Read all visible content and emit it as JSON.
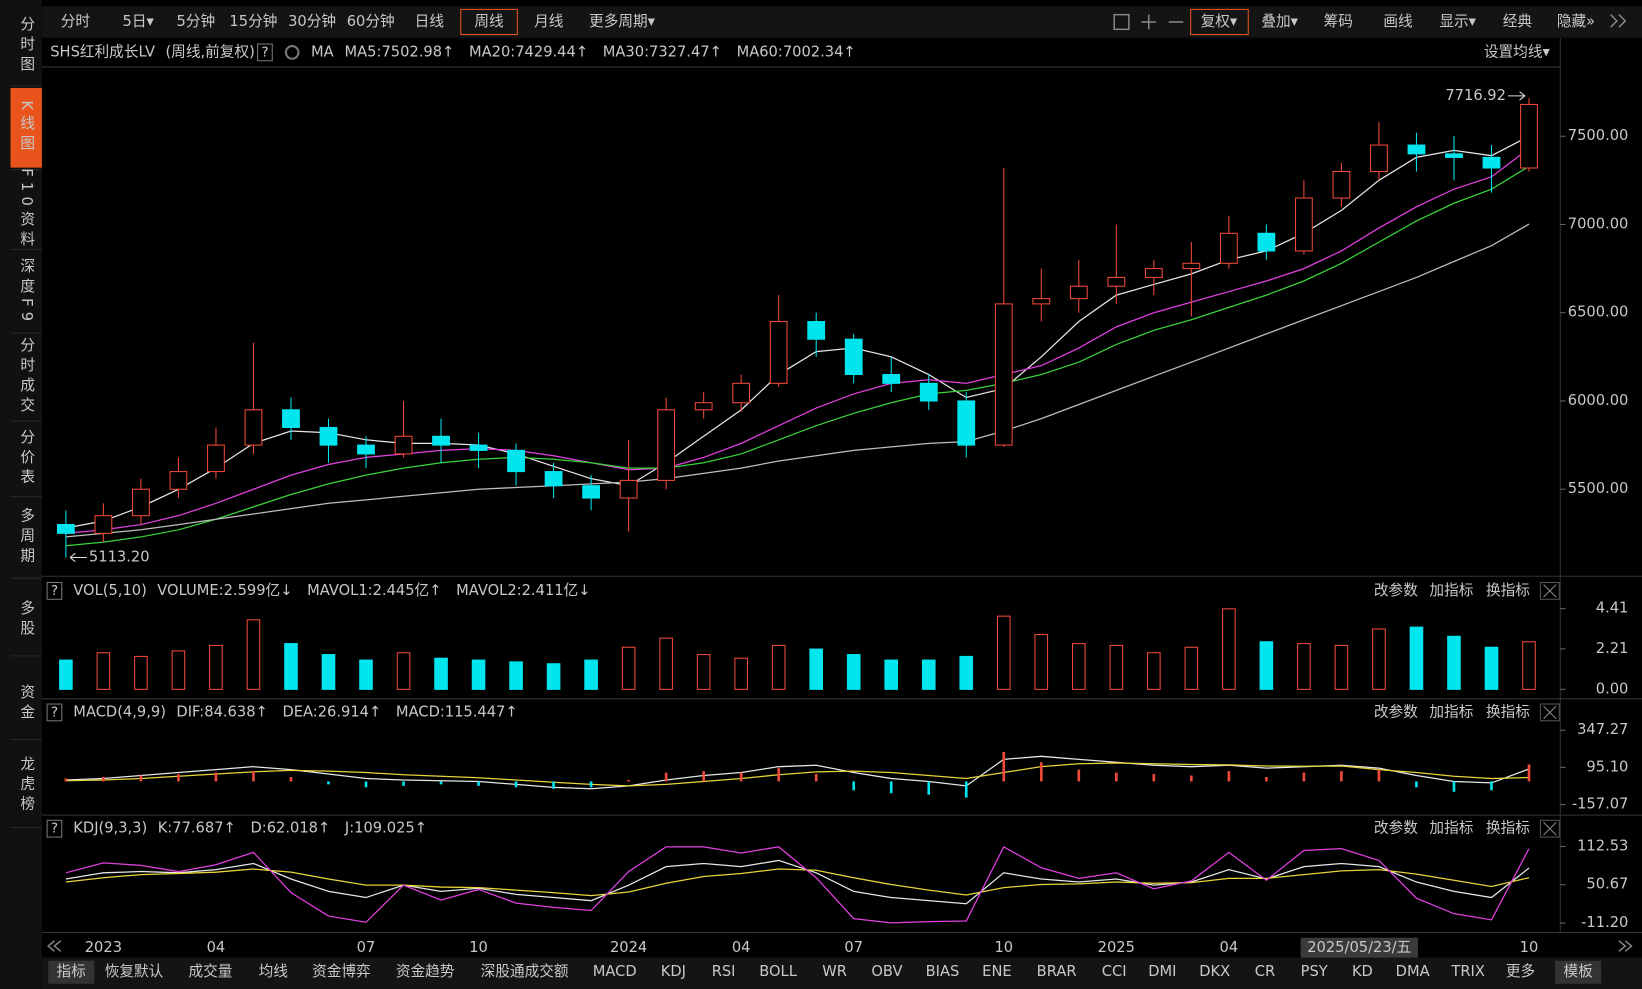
{
  "toolbar": {
    "periods": [
      "分时",
      "5日▾",
      "5分钟",
      "15分钟",
      "30分钟",
      "60分钟",
      "日线",
      "周线",
      "月线",
      "更多周期▾"
    ],
    "tools": [
      "复权▾",
      "叠加▾",
      "筹码",
      "画线",
      "显示▾",
      "经典",
      "隐藏»"
    ]
  },
  "sidebar": [
    "分时图",
    "K线图",
    "F10资料",
    "深度F9",
    "分时成交",
    "分价表",
    "多周期",
    "多股",
    "资金",
    "龙虎榜"
  ],
  "bottom_tabs": [
    "指标",
    "恢复默认",
    "成交量",
    "均线",
    "资金博弈",
    "资金趋势",
    "深股通成交额",
    "MACD",
    "KDJ",
    "RSI",
    "BOLL",
    "WR",
    "OBV",
    "BIAS",
    "ENE",
    "BRAR",
    "CCI",
    "DMI",
    "DKX",
    "CR",
    "PSY",
    "KD",
    "DMA",
    "TRIX",
    "更多",
    "模板"
  ],
  "panel_buttons": [
    "改参数",
    "加指标",
    "换指标"
  ],
  "help_mark": "?",
  "chart_data": {
    "type": "candlestick",
    "title": "SHS红利成长LV",
    "subtitle": "(周线,前复权)",
    "ma_label": "MA",
    "ma_settings": "设置均线▾",
    "up_color": "#f04a3a",
    "down_color": "#00e5ee",
    "categories": [
      null,
      "2023",
      null,
      null,
      "04",
      null,
      null,
      null,
      "07",
      null,
      null,
      "10",
      null,
      null,
      null,
      "2024",
      null,
      null,
      "04",
      null,
      null,
      "07",
      null,
      null,
      null,
      "10",
      null,
      null,
      "2025",
      null,
      null,
      "04",
      null,
      null,
      null,
      null,
      null,
      null,
      null,
      "10"
    ],
    "candles": [
      [
        5300,
        5380,
        5113.2,
        5250
      ],
      [
        5250,
        5420,
        5200,
        5350
      ],
      [
        5350,
        5560,
        5300,
        5500
      ],
      [
        5500,
        5680,
        5450,
        5600
      ],
      [
        5600,
        5850,
        5560,
        5750
      ],
      [
        5750,
        6330,
        5700,
        5950
      ],
      [
        5950,
        6020,
        5780,
        5850
      ],
      [
        5850,
        5900,
        5650,
        5750
      ],
      [
        5750,
        5800,
        5620,
        5700
      ],
      [
        5700,
        6000,
        5680,
        5800
      ],
      [
        5800,
        5900,
        5650,
        5750
      ],
      [
        5750,
        5820,
        5620,
        5720
      ],
      [
        5720,
        5760,
        5520,
        5600
      ],
      [
        5600,
        5650,
        5450,
        5520
      ],
      [
        5520,
        5580,
        5380,
        5450
      ],
      [
        5450,
        5780,
        5260,
        5550
      ],
      [
        5550,
        6020,
        5500,
        5950
      ],
      [
        5950,
        6050,
        5900,
        5990
      ],
      [
        5990,
        6150,
        5940,
        6100
      ],
      [
        6100,
        6600,
        6080,
        6450
      ],
      [
        6450,
        6500,
        6250,
        6350
      ],
      [
        6350,
        6380,
        6100,
        6150
      ],
      [
        6150,
        6250,
        6050,
        6100
      ],
      [
        6100,
        6150,
        5950,
        6000
      ],
      [
        6000,
        6050,
        5680,
        5750
      ],
      [
        5750,
        7320,
        5740,
        6550
      ],
      [
        6550,
        6750,
        6450,
        6580
      ],
      [
        6580,
        6800,
        6500,
        6650
      ],
      [
        6650,
        7000,
        6550,
        6700
      ],
      [
        6700,
        6800,
        6600,
        6750
      ],
      [
        6750,
        6900,
        6480,
        6780
      ],
      [
        6780,
        7050,
        6750,
        6950
      ],
      [
        6950,
        7000,
        6800,
        6850
      ],
      [
        6850,
        7250,
        6830,
        7150
      ],
      [
        7150,
        7350,
        7100,
        7300
      ],
      [
        7300,
        7580,
        7250,
        7450
      ],
      [
        7450,
        7520,
        7300,
        7400
      ],
      [
        7400,
        7500,
        7250,
        7380
      ],
      [
        7380,
        7450,
        7180,
        7320
      ],
      [
        7320,
        7716.92,
        7300,
        7680
      ]
    ],
    "ylim": [
      5019,
      7886
    ],
    "yticks": [
      {
        "value": 5500,
        "label": "5500.00"
      },
      {
        "value": 6000,
        "label": "6000.00"
      },
      {
        "value": 6500,
        "label": "6500.00"
      },
      {
        "value": 7000,
        "label": "7000.00"
      },
      {
        "value": 7500,
        "label": "7500.00"
      }
    ],
    "series": [
      {
        "name": "MA5:7502.98↑",
        "color": "#e6e6e6",
        "values": [
          5280,
          5320,
          5400,
          5500,
          5620,
          5760,
          5830,
          5820,
          5780,
          5760,
          5760,
          5750,
          5700,
          5630,
          5560,
          5520,
          5650,
          5800,
          5950,
          6150,
          6280,
          6300,
          6250,
          6150,
          6020,
          6070,
          6250,
          6450,
          6600,
          6660,
          6720,
          6800,
          6850,
          6950,
          7080,
          7250,
          7380,
          7420,
          7390,
          7500
        ]
      },
      {
        "name": "MA20:7429.44↑",
        "color": "#e040e0",
        "values": [
          5250,
          5270,
          5300,
          5350,
          5420,
          5500,
          5580,
          5640,
          5680,
          5700,
          5720,
          5730,
          5720,
          5690,
          5650,
          5610,
          5620,
          5680,
          5760,
          5860,
          5960,
          6040,
          6100,
          6120,
          6100,
          6150,
          6200,
          6300,
          6420,
          6500,
          6560,
          6620,
          6680,
          6750,
          6850,
          6980,
          7100,
          7200,
          7270,
          7430
        ]
      },
      {
        "name": "MA30:7327.47↑",
        "color": "#3ad33a",
        "values": [
          5180,
          5200,
          5230,
          5270,
          5330,
          5400,
          5470,
          5530,
          5580,
          5620,
          5650,
          5670,
          5680,
          5670,
          5650,
          5620,
          5620,
          5650,
          5700,
          5780,
          5860,
          5930,
          5990,
          6040,
          6060,
          6100,
          6150,
          6220,
          6320,
          6400,
          6460,
          6530,
          6600,
          6680,
          6780,
          6900,
          7020,
          7120,
          7200,
          7330
        ]
      },
      {
        "name": "MA60:7002.34↑",
        "color": "#bdbdbd",
        "values": [
          5230,
          5250,
          5270,
          5300,
          5330,
          5360,
          5390,
          5420,
          5440,
          5460,
          5480,
          5500,
          5510,
          5520,
          5530,
          5540,
          5560,
          5590,
          5620,
          5660,
          5690,
          5720,
          5740,
          5760,
          5770,
          5830,
          5900,
          5980,
          6060,
          6140,
          6220,
          6300,
          6380,
          6460,
          6540,
          6620,
          6700,
          6790,
          6880,
          7002.34
        ]
      }
    ],
    "max_label": "7716.92",
    "min_label": "5113.20",
    "cursor_date": "2025/05/23/五",
    "volume": {
      "title": "VOL(5,10)",
      "ylim": [
        0,
        4.75
      ],
      "yticks": [
        {
          "value": 0,
          "label": "0.00"
        },
        2.21,
        4.41
      ],
      "series": [
        {
          "name": "VOLUME:2.599亿↓",
          "color": "#e6e6e6",
          "values": [
            1.6,
            2.0,
            1.8,
            2.1,
            2.4,
            3.8,
            2.5,
            1.9,
            1.6,
            2.0,
            1.7,
            1.6,
            1.5,
            1.4,
            1.6,
            2.3,
            2.8,
            1.9,
            1.7,
            2.4,
            2.2,
            1.9,
            1.6,
            1.6,
            1.8,
            4.0,
            3.0,
            2.5,
            2.4,
            2.0,
            2.3,
            4.4,
            2.6,
            2.5,
            2.4,
            3.3,
            3.4,
            2.9,
            2.3,
            2.599
          ]
        },
        {
          "name": "MAVOL1:2.445亿↑",
          "color": "#e8d43a"
        },
        {
          "name": "MAVOL2:2.411亿↓",
          "color": "#e040e0"
        }
      ]
    },
    "macd": {
      "title": "MACD(4,9,9)",
      "ylim": [
        -207,
        397
      ],
      "yticks": [
        -157.07,
        {
          "value": 95.1,
          "label": "95.10"
        },
        347.27
      ],
      "series": [
        {
          "name": "DIF:84.638↑",
          "color": "#e6e6e6",
          "values": [
            10,
            20,
            40,
            60,
            80,
            100,
            80,
            50,
            20,
            10,
            5,
            0,
            -20,
            -40,
            -50,
            -30,
            10,
            40,
            60,
            100,
            110,
            60,
            20,
            0,
            -30,
            150,
            170,
            150,
            130,
            110,
            100,
            110,
            90,
            100,
            110,
            90,
            40,
            0,
            -10,
            84.638
          ]
        },
        {
          "name": "DEA:26.914↑",
          "color": "#e8d43a",
          "values": [
            5,
            10,
            20,
            35,
            50,
            65,
            75,
            70,
            60,
            45,
            35,
            25,
            10,
            -5,
            -20,
            -30,
            -20,
            0,
            20,
            45,
            65,
            70,
            60,
            40,
            20,
            60,
            100,
            120,
            125,
            120,
            115,
            112,
            105,
            103,
            105,
            80,
            60,
            35,
            20,
            26.914
          ]
        },
        {
          "name": "MACD:115.447↑",
          "color": "#e040e0",
          "bars": true,
          "values": [
            20,
            30,
            40,
            50,
            60,
            70,
            30,
            -20,
            -40,
            -30,
            -20,
            -30,
            -40,
            -50,
            -40,
            10,
            60,
            70,
            60,
            90,
            50,
            -60,
            -80,
            -90,
            -110,
            200,
            130,
            80,
            60,
            50,
            40,
            70,
            30,
            60,
            70,
            80,
            -40,
            -70,
            -60,
            115.447
          ]
        }
      ]
    },
    "kdj": {
      "title": "KDJ(9,3,3)",
      "ylim": [
        -23,
        126
      ],
      "yticks": [
        {
          "value": -11.2,
          "label": "-11.20"
        },
        50.67,
        112.53
      ],
      "series": [
        {
          "name": "K:77.687↑",
          "color": "#e6e6e6",
          "values": [
            60,
            70,
            72,
            70,
            75,
            85,
            60,
            40,
            30,
            50,
            40,
            45,
            35,
            30,
            25,
            50,
            80,
            85,
            80,
            90,
            70,
            40,
            30,
            25,
            20,
            70,
            60,
            55,
            60,
            50,
            55,
            75,
            60,
            80,
            85,
            80,
            55,
            40,
            30,
            77.687
          ]
        },
        {
          "name": "D:62.018↑",
          "color": "#e8d43a",
          "values": [
            55,
            62,
            67,
            69,
            71,
            76,
            71,
            60,
            50,
            50,
            47,
            46,
            42,
            38,
            33,
            39,
            53,
            64,
            69,
            76,
            74,
            62,
            51,
            42,
            34,
            46,
            51,
            52,
            55,
            53,
            54,
            61,
            61,
            67,
            73,
            75,
            68,
            58,
            48,
            62.018
          ]
        },
        {
          "name": "J:109.025↑",
          "color": "#e040e0",
          "values": [
            70,
            86,
            82,
            72,
            83,
            103,
            38,
            0,
            -10,
            50,
            26,
            43,
            21,
            14,
            9,
            72,
            112,
            112,
            102,
            112,
            62,
            -4,
            -11,
            -9,
            -8,
            112,
            78,
            61,
            70,
            44,
            57,
            103,
            58,
            106,
            109,
            90,
            29,
            4,
            -6,
            109.025
          ]
        }
      ]
    }
  }
}
